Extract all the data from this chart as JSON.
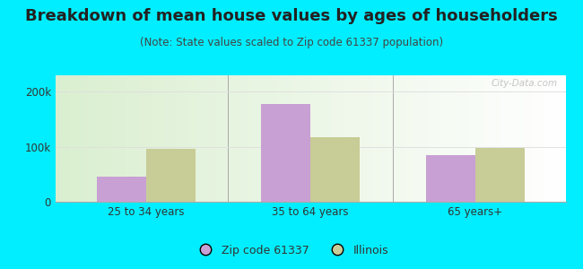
{
  "title": "Breakdown of mean house values by ages of householders",
  "subtitle": "(Note: State values scaled to Zip code 61337 population)",
  "categories": [
    "25 to 34 years",
    "35 to 64 years",
    "65 years+"
  ],
  "zip_values": [
    45000,
    178000,
    85000
  ],
  "state_values": [
    97000,
    118000,
    98000
  ],
  "zip_color": "#c8a0d4",
  "state_color": "#c8cc96",
  "background_outer": "#00eeff",
  "ylim": [
    0,
    230000
  ],
  "ytick_vals": [
    0,
    100000,
    200000
  ],
  "ytick_labels": [
    "0",
    "100k",
    "200k"
  ],
  "legend_zip_label": "Zip code 61337",
  "legend_state_label": "Illinois",
  "bar_width": 0.3,
  "title_fontsize": 13,
  "subtitle_fontsize": 8.5,
  "axis_fontsize": 8.5,
  "legend_fontsize": 9,
  "watermark": "City-Data.com",
  "divider_color": "#aaaaaa",
  "grid_color": "#dddddd",
  "title_color": "#222222",
  "subtitle_color": "#444444"
}
